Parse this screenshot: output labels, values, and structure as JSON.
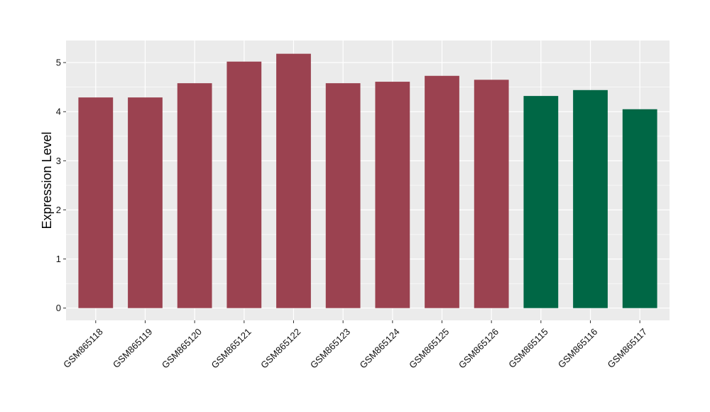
{
  "chart_data": {
    "type": "bar",
    "title": "",
    "xlabel": "",
    "ylabel": "Expression Level",
    "categories": [
      "GSM865118",
      "GSM865119",
      "GSM865120",
      "GSM865121",
      "GSM865122",
      "GSM865123",
      "GSM865124",
      "GSM865125",
      "GSM865126",
      "GSM865115",
      "GSM865116",
      "GSM865117"
    ],
    "values": [
      4.29,
      4.29,
      4.58,
      5.02,
      5.18,
      4.58,
      4.61,
      4.73,
      4.65,
      4.32,
      4.44,
      4.05
    ],
    "bar_colors": [
      "#9b4250",
      "#9b4250",
      "#9b4250",
      "#9b4250",
      "#9b4250",
      "#9b4250",
      "#9b4250",
      "#9b4250",
      "#9b4250",
      "#006745",
      "#006745",
      "#006745"
    ],
    "ylim": [
      -0.25,
      5.45
    ],
    "yticks": [
      0,
      1,
      2,
      3,
      4,
      5
    ],
    "grid": true,
    "legend": "none",
    "panel_background": "#ebebeb",
    "grid_color": "#ffffff"
  }
}
